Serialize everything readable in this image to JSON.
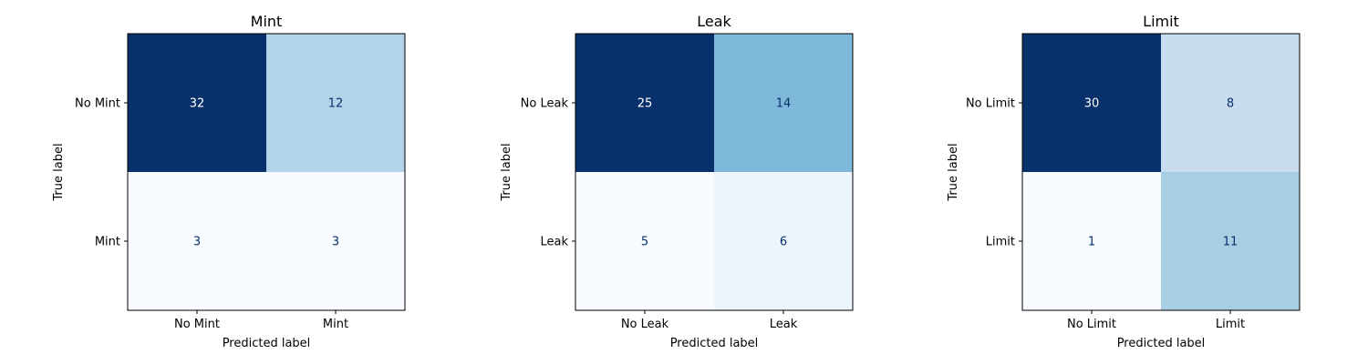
{
  "chart_data": [
    {
      "type": "heatmap",
      "title": "Mint",
      "xlabel": "Predicted label",
      "ylabel": "True label",
      "x_ticks": [
        "No Mint",
        "Mint"
      ],
      "y_ticks": [
        "No Mint",
        "Mint"
      ],
      "matrix": [
        [
          32,
          12
        ],
        [
          3,
          3
        ]
      ],
      "colormap": "Blues",
      "colorbar": false,
      "grid": false
    },
    {
      "type": "heatmap",
      "title": "Leak",
      "xlabel": "Predicted label",
      "ylabel": "True label",
      "x_ticks": [
        "No Leak",
        "Leak"
      ],
      "y_ticks": [
        "No Leak",
        "Leak"
      ],
      "matrix": [
        [
          25,
          14
        ],
        [
          5,
          6
        ]
      ],
      "colormap": "Blues",
      "colorbar": false,
      "grid": false
    },
    {
      "type": "heatmap",
      "title": "Limit",
      "xlabel": "Predicted label",
      "ylabel": "True label",
      "x_ticks": [
        "No Limit",
        "Limit"
      ],
      "y_ticks": [
        "No Limit",
        "Limit"
      ],
      "matrix": [
        [
          30,
          8
        ],
        [
          1,
          11
        ]
      ],
      "colormap": "Blues",
      "colorbar": false,
      "grid": false
    }
  ]
}
